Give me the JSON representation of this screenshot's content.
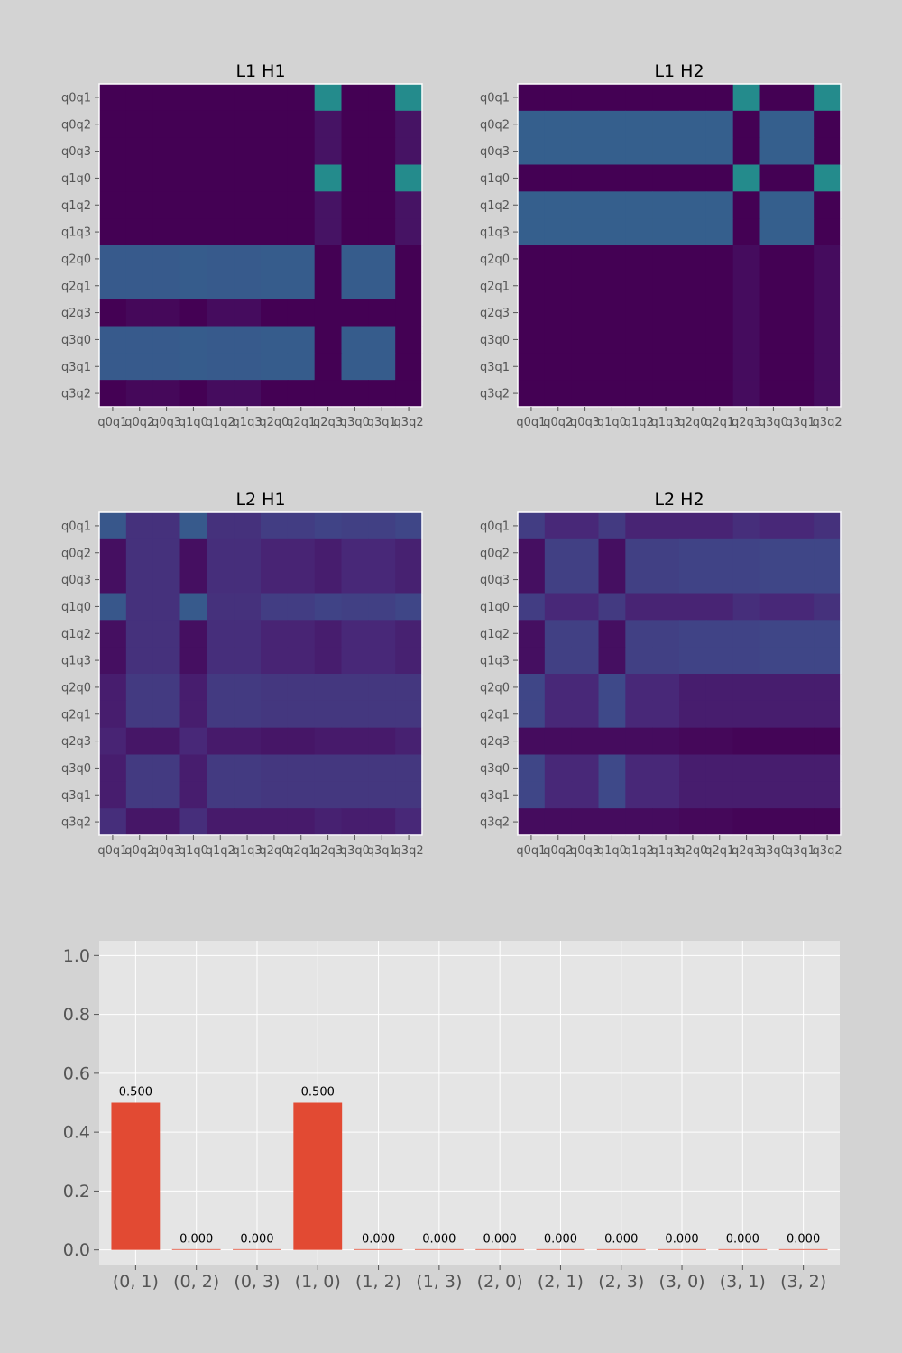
{
  "colors": {
    "figure_bg": "#d3d3d3",
    "axes_bg": "#e5e5e5",
    "grid": "#ffffff",
    "bar": "#e24a33",
    "tick_text": "#555555",
    "colormap": "viridis"
  },
  "chart_data": [
    {
      "type": "heatmap",
      "title": "L1 H1",
      "x_categories": [
        "q0q1",
        "q0q2",
        "q0q3",
        "q1q0",
        "q1q2",
        "q1q3",
        "q2q0",
        "q2q1",
        "q2q3",
        "q3q0",
        "q3q1",
        "q3q2"
      ],
      "y_categories": [
        "q0q1",
        "q0q2",
        "q0q3",
        "q1q0",
        "q1q2",
        "q1q3",
        "q2q0",
        "q2q1",
        "q2q3",
        "q3q0",
        "q3q1",
        "q3q2"
      ],
      "value_range": [
        0,
        1
      ],
      "values": [
        [
          0.0,
          0.0,
          0.0,
          0.0,
          0.0,
          0.0,
          0.0,
          0.0,
          0.48,
          0.0,
          0.0,
          0.48
        ],
        [
          0.0,
          0.0,
          0.0,
          0.0,
          0.0,
          0.0,
          0.0,
          0.0,
          0.05,
          0.0,
          0.0,
          0.05
        ],
        [
          0.0,
          0.0,
          0.0,
          0.0,
          0.0,
          0.0,
          0.0,
          0.0,
          0.05,
          0.0,
          0.0,
          0.05
        ],
        [
          0.0,
          0.0,
          0.0,
          0.0,
          0.0,
          0.0,
          0.0,
          0.0,
          0.48,
          0.0,
          0.0,
          0.48
        ],
        [
          0.0,
          0.0,
          0.0,
          0.0,
          0.0,
          0.0,
          0.0,
          0.0,
          0.05,
          0.0,
          0.0,
          0.05
        ],
        [
          0.0,
          0.0,
          0.0,
          0.0,
          0.0,
          0.0,
          0.0,
          0.0,
          0.05,
          0.0,
          0.0,
          0.05
        ],
        [
          0.28,
          0.28,
          0.28,
          0.29,
          0.28,
          0.28,
          0.29,
          0.29,
          0.0,
          0.29,
          0.29,
          0.0
        ],
        [
          0.28,
          0.28,
          0.28,
          0.29,
          0.28,
          0.28,
          0.29,
          0.29,
          0.0,
          0.29,
          0.29,
          0.0
        ],
        [
          0.0,
          0.02,
          0.02,
          0.0,
          0.03,
          0.03,
          0.0,
          0.0,
          0.0,
          0.0,
          0.0,
          0.0
        ],
        [
          0.28,
          0.28,
          0.28,
          0.29,
          0.28,
          0.28,
          0.29,
          0.29,
          0.0,
          0.29,
          0.29,
          0.0
        ],
        [
          0.28,
          0.28,
          0.28,
          0.29,
          0.28,
          0.28,
          0.29,
          0.29,
          0.0,
          0.29,
          0.29,
          0.0
        ],
        [
          0.0,
          0.02,
          0.02,
          0.0,
          0.03,
          0.03,
          0.0,
          0.0,
          0.0,
          0.0,
          0.0,
          0.0
        ]
      ]
    },
    {
      "type": "heatmap",
      "title": "L1 H2",
      "x_categories": [
        "q0q1",
        "q0q2",
        "q0q3",
        "q1q0",
        "q1q2",
        "q1q3",
        "q2q0",
        "q2q1",
        "q2q3",
        "q3q0",
        "q3q1",
        "q3q2"
      ],
      "y_categories": [
        "q0q1",
        "q0q2",
        "q0q3",
        "q1q0",
        "q1q2",
        "q1q3",
        "q2q0",
        "q2q1",
        "q2q3",
        "q3q0",
        "q3q1",
        "q3q2"
      ],
      "value_range": [
        0,
        1
      ],
      "values": [
        [
          0.0,
          0.0,
          0.0,
          0.0,
          0.0,
          0.0,
          0.0,
          0.0,
          0.48,
          0.0,
          0.0,
          0.48
        ],
        [
          0.3,
          0.3,
          0.3,
          0.3,
          0.3,
          0.3,
          0.3,
          0.3,
          0.0,
          0.3,
          0.3,
          0.0
        ],
        [
          0.3,
          0.3,
          0.3,
          0.3,
          0.3,
          0.3,
          0.3,
          0.3,
          0.0,
          0.3,
          0.3,
          0.0
        ],
        [
          0.0,
          0.0,
          0.0,
          0.0,
          0.0,
          0.0,
          0.0,
          0.0,
          0.48,
          0.0,
          0.0,
          0.48
        ],
        [
          0.3,
          0.3,
          0.3,
          0.3,
          0.3,
          0.3,
          0.3,
          0.3,
          0.0,
          0.3,
          0.3,
          0.0
        ],
        [
          0.3,
          0.3,
          0.3,
          0.3,
          0.3,
          0.3,
          0.3,
          0.3,
          0.0,
          0.3,
          0.3,
          0.0
        ],
        [
          0.0,
          0.0,
          0.0,
          0.0,
          0.0,
          0.0,
          0.0,
          0.0,
          0.03,
          0.0,
          0.0,
          0.03
        ],
        [
          0.0,
          0.0,
          0.0,
          0.0,
          0.0,
          0.0,
          0.0,
          0.0,
          0.03,
          0.0,
          0.0,
          0.03
        ],
        [
          0.0,
          0.0,
          0.0,
          0.0,
          0.0,
          0.0,
          0.0,
          0.0,
          0.03,
          0.0,
          0.0,
          0.03
        ],
        [
          0.0,
          0.0,
          0.0,
          0.0,
          0.0,
          0.0,
          0.0,
          0.0,
          0.03,
          0.0,
          0.0,
          0.03
        ],
        [
          0.0,
          0.0,
          0.0,
          0.0,
          0.0,
          0.0,
          0.0,
          0.0,
          0.03,
          0.0,
          0.0,
          0.03
        ],
        [
          0.0,
          0.0,
          0.0,
          0.0,
          0.0,
          0.0,
          0.0,
          0.0,
          0.03,
          0.0,
          0.0,
          0.03
        ]
      ]
    },
    {
      "type": "heatmap",
      "title": "L2 H1",
      "x_categories": [
        "q0q1",
        "q0q2",
        "q0q3",
        "q1q0",
        "q1q2",
        "q1q3",
        "q2q0",
        "q2q1",
        "q2q3",
        "q3q0",
        "q3q1",
        "q3q2"
      ],
      "y_categories": [
        "q0q1",
        "q0q2",
        "q0q3",
        "q1q0",
        "q1q2",
        "q1q3",
        "q2q0",
        "q2q1",
        "q2q3",
        "q3q0",
        "q3q1",
        "q3q2"
      ],
      "value_range": [
        0,
        1
      ],
      "values": [
        [
          0.27,
          0.14,
          0.14,
          0.28,
          0.14,
          0.14,
          0.18,
          0.18,
          0.2,
          0.19,
          0.19,
          0.21
        ],
        [
          0.04,
          0.14,
          0.14,
          0.04,
          0.13,
          0.13,
          0.1,
          0.1,
          0.08,
          0.11,
          0.11,
          0.09
        ],
        [
          0.04,
          0.14,
          0.14,
          0.04,
          0.13,
          0.13,
          0.1,
          0.1,
          0.08,
          0.11,
          0.11,
          0.09
        ],
        [
          0.27,
          0.14,
          0.14,
          0.28,
          0.14,
          0.14,
          0.18,
          0.18,
          0.2,
          0.19,
          0.19,
          0.21
        ],
        [
          0.04,
          0.14,
          0.14,
          0.04,
          0.13,
          0.13,
          0.1,
          0.1,
          0.08,
          0.11,
          0.11,
          0.09
        ],
        [
          0.04,
          0.14,
          0.14,
          0.04,
          0.13,
          0.13,
          0.1,
          0.1,
          0.08,
          0.11,
          0.11,
          0.09
        ],
        [
          0.08,
          0.17,
          0.17,
          0.08,
          0.17,
          0.17,
          0.16,
          0.16,
          0.16,
          0.16,
          0.16,
          0.16
        ],
        [
          0.08,
          0.17,
          0.17,
          0.08,
          0.17,
          0.17,
          0.16,
          0.16,
          0.16,
          0.16,
          0.16,
          0.16
        ],
        [
          0.1,
          0.06,
          0.06,
          0.11,
          0.07,
          0.07,
          0.06,
          0.06,
          0.07,
          0.07,
          0.07,
          0.09
        ],
        [
          0.08,
          0.17,
          0.17,
          0.08,
          0.17,
          0.17,
          0.16,
          0.16,
          0.16,
          0.16,
          0.16,
          0.16
        ],
        [
          0.08,
          0.17,
          0.17,
          0.08,
          0.17,
          0.17,
          0.16,
          0.16,
          0.16,
          0.16,
          0.16,
          0.16
        ],
        [
          0.13,
          0.06,
          0.06,
          0.13,
          0.07,
          0.07,
          0.07,
          0.07,
          0.09,
          0.08,
          0.08,
          0.11
        ]
      ]
    },
    {
      "type": "heatmap",
      "title": "L2 H2",
      "x_categories": [
        "q0q1",
        "q0q2",
        "q0q3",
        "q1q0",
        "q1q2",
        "q1q3",
        "q2q0",
        "q2q1",
        "q2q3",
        "q3q0",
        "q3q1",
        "q3q2"
      ],
      "y_categories": [
        "q0q1",
        "q0q2",
        "q0q3",
        "q1q0",
        "q1q2",
        "q1q3",
        "q2q0",
        "q2q1",
        "q2q3",
        "q3q0",
        "q3q1",
        "q3q2"
      ],
      "value_range": [
        0,
        1
      ],
      "values": [
        [
          0.18,
          0.11,
          0.11,
          0.17,
          0.1,
          0.1,
          0.1,
          0.1,
          0.13,
          0.11,
          0.11,
          0.14
        ],
        [
          0.04,
          0.19,
          0.19,
          0.04,
          0.19,
          0.19,
          0.2,
          0.2,
          0.2,
          0.21,
          0.21,
          0.21
        ],
        [
          0.04,
          0.19,
          0.19,
          0.04,
          0.19,
          0.19,
          0.2,
          0.2,
          0.2,
          0.21,
          0.21,
          0.21
        ],
        [
          0.18,
          0.11,
          0.11,
          0.17,
          0.1,
          0.1,
          0.1,
          0.1,
          0.13,
          0.11,
          0.11,
          0.14
        ],
        [
          0.04,
          0.19,
          0.19,
          0.04,
          0.19,
          0.19,
          0.2,
          0.2,
          0.2,
          0.21,
          0.21,
          0.21
        ],
        [
          0.04,
          0.19,
          0.19,
          0.04,
          0.19,
          0.19,
          0.2,
          0.2,
          0.2,
          0.21,
          0.21,
          0.21
        ],
        [
          0.21,
          0.11,
          0.11,
          0.22,
          0.11,
          0.11,
          0.08,
          0.08,
          0.08,
          0.08,
          0.08,
          0.08
        ],
        [
          0.21,
          0.11,
          0.11,
          0.22,
          0.11,
          0.11,
          0.08,
          0.08,
          0.08,
          0.08,
          0.08,
          0.08
        ],
        [
          0.03,
          0.03,
          0.03,
          0.03,
          0.03,
          0.03,
          0.02,
          0.02,
          0.01,
          0.01,
          0.01,
          0.01
        ],
        [
          0.21,
          0.11,
          0.11,
          0.22,
          0.11,
          0.11,
          0.08,
          0.08,
          0.08,
          0.08,
          0.08,
          0.08
        ],
        [
          0.21,
          0.11,
          0.11,
          0.22,
          0.11,
          0.11,
          0.08,
          0.08,
          0.08,
          0.08,
          0.08,
          0.08
        ],
        [
          0.03,
          0.03,
          0.03,
          0.03,
          0.03,
          0.03,
          0.02,
          0.02,
          0.01,
          0.01,
          0.01,
          0.01
        ]
      ]
    },
    {
      "type": "bar",
      "title": "",
      "xlabel": "",
      "ylabel": "",
      "categories": [
        "(0, 1)",
        "(0, 2)",
        "(0, 3)",
        "(1, 0)",
        "(1, 2)",
        "(1, 3)",
        "(2, 0)",
        "(2, 1)",
        "(2, 3)",
        "(3, 0)",
        "(3, 1)",
        "(3, 2)"
      ],
      "values": [
        0.5,
        0.0,
        0.0,
        0.5,
        0.0,
        0.0,
        0.0,
        0.0,
        0.0,
        0.0,
        0.0,
        0.0
      ],
      "data_labels": [
        "0.500",
        "0.000",
        "0.000",
        "0.500",
        "0.000",
        "0.000",
        "0.000",
        "0.000",
        "0.000",
        "0.000",
        "0.000",
        "0.000"
      ],
      "yticks": [
        "0.0",
        "0.2",
        "0.4",
        "0.6",
        "0.8",
        "1.0"
      ],
      "ylim": [
        -0.05,
        1.05
      ],
      "grid": true,
      "legend": "none"
    }
  ]
}
